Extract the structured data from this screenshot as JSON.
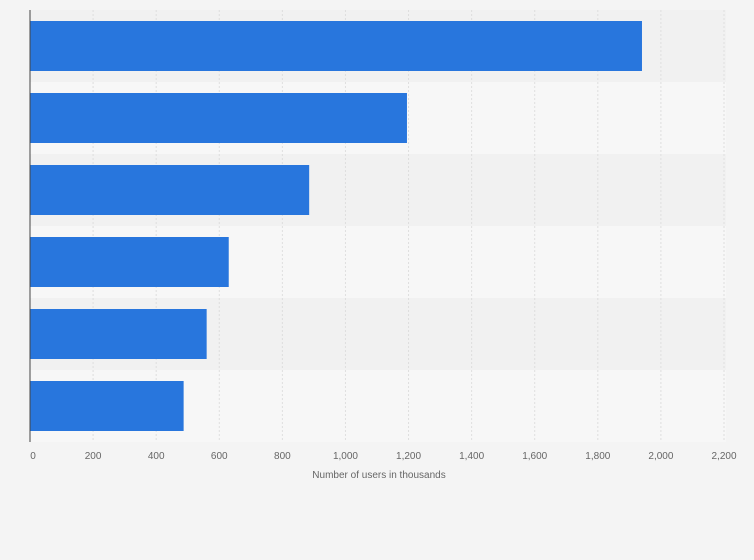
{
  "chart_data": {
    "type": "bar",
    "orientation": "horizontal",
    "categories": [
      "",
      "",
      "",
      "",
      "",
      ""
    ],
    "values": [
      1940,
      1195,
      885,
      630,
      560,
      487
    ],
    "xlabel": "Number of users in thousands",
    "ylabel": "",
    "xlim": [
      0,
      2200
    ],
    "xticks": [
      0,
      200,
      400,
      600,
      800,
      1000,
      1200,
      1400,
      1600,
      1800,
      2000,
      2200
    ],
    "xtick_labels": [
      "0",
      "200",
      "400",
      "600",
      "800",
      "1,000",
      "1,200",
      "1,400",
      "1,600",
      "1,800",
      "2,000",
      "2,200"
    ],
    "grid": true,
    "bar_color": "#2876dd",
    "band_colors": [
      "#f1f1f1",
      "#f7f7f7"
    ]
  }
}
